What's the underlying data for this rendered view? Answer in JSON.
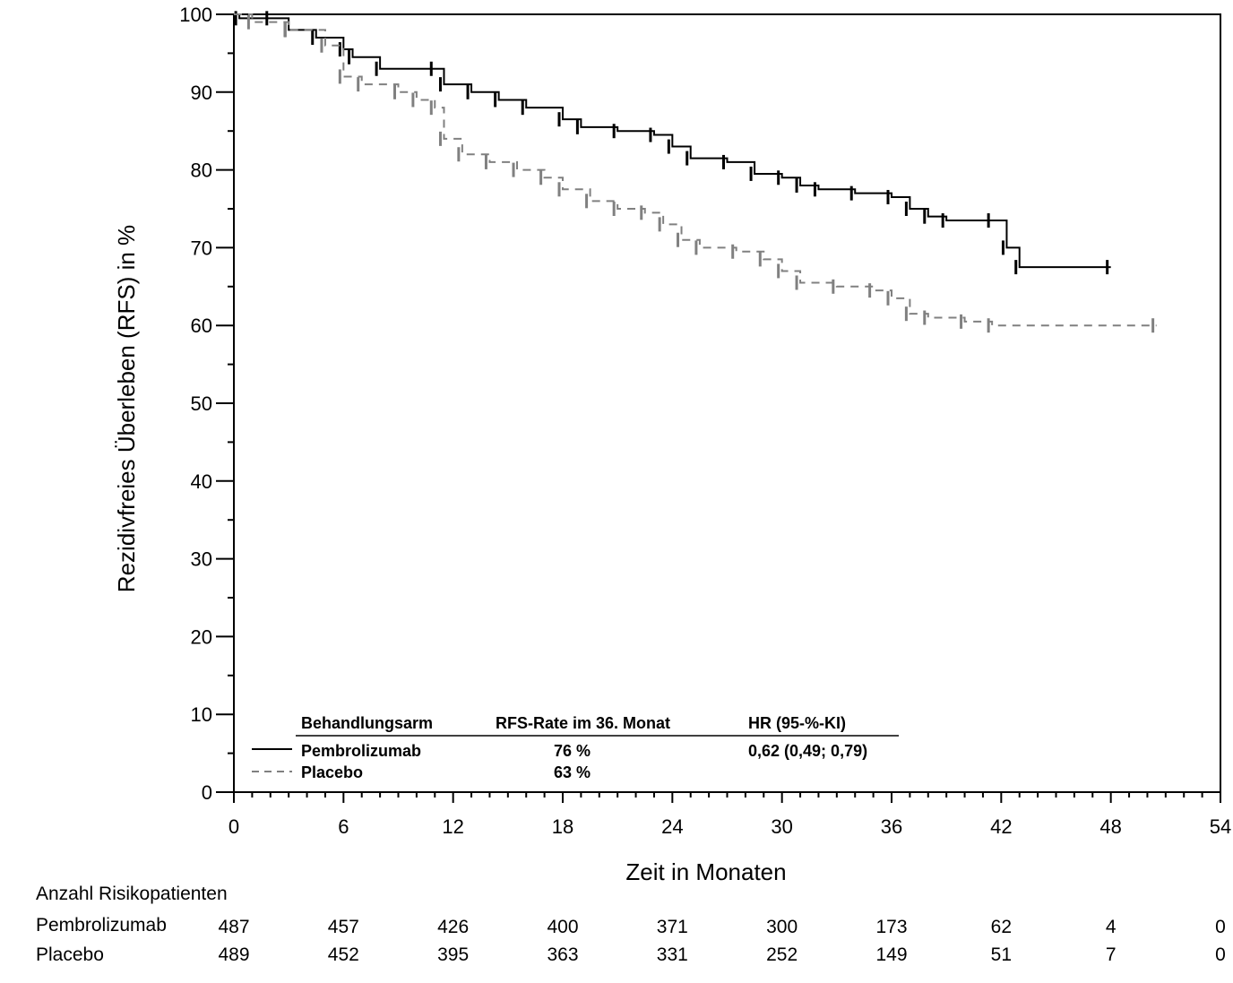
{
  "chart_data": {
    "type": "line",
    "subtype": "kaplan-meier",
    "title": "",
    "xlabel": "Zeit in Monaten",
    "ylabel": "Rezidivfreies Überleben (RFS) in %",
    "xlim": [
      0,
      54
    ],
    "ylim": [
      0,
      100
    ],
    "x_ticks": [
      0,
      6,
      12,
      18,
      24,
      30,
      36,
      42,
      48,
      54
    ],
    "y_ticks": [
      0,
      10,
      20,
      30,
      40,
      50,
      60,
      70,
      80,
      90,
      100
    ],
    "grid": false,
    "series": [
      {
        "name": "Pembrolizumab",
        "color": "#000000",
        "style": "solid",
        "x": [
          0,
          0.3,
          2,
          3,
          4.5,
          6,
          6.5,
          8,
          11,
          11.5,
          13,
          14.5,
          16,
          18,
          19,
          21,
          23,
          24,
          25,
          27,
          28.5,
          30,
          31,
          32,
          34,
          36,
          37,
          38,
          39,
          41.5,
          42.3,
          43,
          48
        ],
        "y": [
          100,
          99.5,
          99.5,
          98,
          97,
          95.5,
          94.5,
          93,
          93,
          91,
          90,
          89,
          88,
          86.5,
          85.5,
          85,
          84.5,
          83,
          81.5,
          81,
          79.5,
          79,
          78,
          77.5,
          77,
          76.5,
          75,
          74,
          73.5,
          73.5,
          70,
          67.5,
          67.5
        ]
      },
      {
        "name": "Placebo",
        "color": "#808080",
        "style": "dashed",
        "x": [
          0,
          1,
          3,
          5,
          6,
          7,
          9,
          10,
          11,
          11.5,
          12.5,
          14,
          15.5,
          17,
          18,
          19.5,
          21,
          22.5,
          23.5,
          24.5,
          25.5,
          27.5,
          29,
          30,
          31,
          33,
          35,
          36,
          37,
          38,
          40,
          41.5,
          50.5
        ],
        "y": [
          100,
          99,
          98,
          96,
          92,
          91,
          90,
          89,
          88,
          84,
          82,
          81,
          80,
          79,
          77.5,
          76,
          75,
          74.5,
          73,
          71,
          70,
          69.5,
          68.5,
          67,
          65.5,
          65,
          64.5,
          63.5,
          61.5,
          61,
          60.5,
          60,
          60
        ]
      }
    ],
    "legend": {
      "placement": "bottom-left",
      "headers": [
        "Behandlungsarm",
        "RFS-Rate im 36. Monat",
        "HR (95-%-KI)"
      ],
      "rows": [
        {
          "arm": "Pembrolizumab",
          "rate": "76 %",
          "hr": "0,62 (0,49; 0,79)"
        },
        {
          "arm": "Placebo",
          "rate": "63 %",
          "hr": ""
        }
      ]
    },
    "risk_table": {
      "title": "Anzahl Risikopatienten",
      "times": [
        0,
        6,
        12,
        18,
        24,
        30,
        36,
        42,
        48,
        54
      ],
      "rows": [
        {
          "label": "Pembrolizumab",
          "values": [
            487,
            457,
            426,
            400,
            371,
            300,
            173,
            62,
            4,
            0
          ]
        },
        {
          "label": "Placebo",
          "values": [
            489,
            452,
            395,
            363,
            331,
            252,
            149,
            51,
            7,
            0
          ]
        }
      ]
    }
  }
}
